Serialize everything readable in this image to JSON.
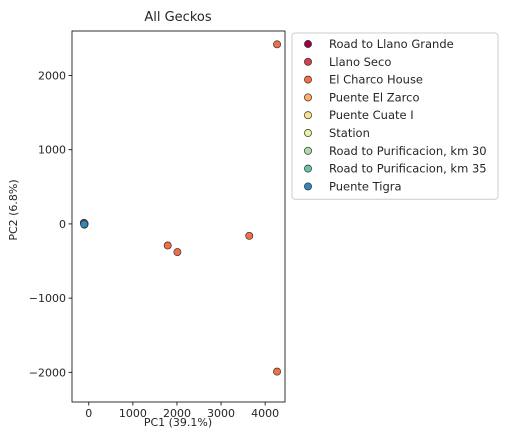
{
  "chart_data": {
    "type": "scatter",
    "title": "All Geckos",
    "xlabel": "PC1 (39.1%)",
    "ylabel": "PC2 (6.8%)",
    "xlim": [
      -380,
      4450
    ],
    "ylim": [
      -2400,
      2600
    ],
    "xticks": [
      0,
      1000,
      2000,
      3000,
      4000
    ],
    "yticks": [
      -2000,
      -1000,
      0,
      1000,
      2000
    ],
    "grid": false,
    "legend_position": "outside-right",
    "series": [
      {
        "name": "Road to Llano Grande",
        "color": "#9e0142",
        "points": [
          [
            -100,
            0
          ]
        ]
      },
      {
        "name": "Llano Seco",
        "color": "#d53e4f",
        "points": [
          [
            -100,
            0
          ]
        ]
      },
      {
        "name": "El Charco House",
        "color": "#f46d43",
        "points": [
          [
            4270,
            2420
          ],
          [
            3640,
            -160
          ],
          [
            1790,
            -290
          ],
          [
            2010,
            -380
          ],
          [
            4270,
            -1990
          ],
          [
            -100,
            0
          ]
        ]
      },
      {
        "name": "Puente El Zarco",
        "color": "#fdae61",
        "points": [
          [
            -100,
            0
          ]
        ]
      },
      {
        "name": "Puente Cuate I",
        "color": "#fee08b",
        "points": [
          [
            -100,
            0
          ]
        ]
      },
      {
        "name": "Station",
        "color": "#e6f598",
        "points": [
          [
            -100,
            0
          ]
        ]
      },
      {
        "name": "Road to Purificacion, km 30",
        "color": "#abdda4",
        "points": [
          [
            -100,
            0
          ]
        ]
      },
      {
        "name": "Road to Purificacion, km 35",
        "color": "#66c2a5",
        "points": [
          [
            -100,
            0
          ]
        ]
      },
      {
        "name": "Puente Tigra",
        "color": "#3288bd",
        "points": [
          [
            -100,
            -10
          ],
          [
            -110,
            15
          ],
          [
            -95,
            5
          ],
          [
            -105,
            -5
          ]
        ]
      }
    ]
  }
}
